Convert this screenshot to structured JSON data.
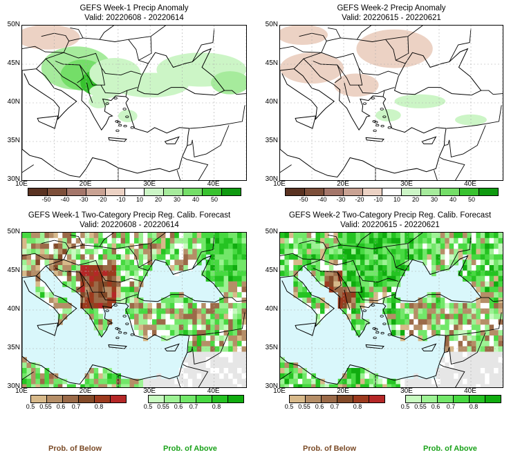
{
  "panels": [
    {
      "title": "GEFS Week-1 Precip Anomaly",
      "valid": "Valid: 20220608 - 20220614"
    },
    {
      "title": "GEFS Week-2 Precip Anomaly",
      "valid": "Valid: 20220615 - 20220621"
    },
    {
      "title": "GEFS Week-1 Two-Category Precip Reg. Calib. Forecast",
      "valid": "Valid: 20220608 - 20220614"
    },
    {
      "title": "GEFS Week-2 Two-Category Precip Reg. Calib. Forecast",
      "valid": "Valid: 20220615 - 20220621"
    }
  ],
  "axes": {
    "lat_labels": [
      "50N",
      "45N",
      "40N",
      "35N",
      "30N"
    ],
    "lon_labels": [
      "10E",
      "20E",
      "30E",
      "40E"
    ]
  },
  "anomaly_colorbar": {
    "ticks": [
      "-50",
      "-40",
      "-30",
      "-20",
      "-10",
      "10",
      "20",
      "30",
      "40",
      "50"
    ],
    "colors": [
      "#5a3322",
      "#7d4f3a",
      "#a4766a",
      "#c9a293",
      "#ecd2c4",
      "#ffffff",
      "#ccf5c6",
      "#a6eb9c",
      "#74de68",
      "#38c22f",
      "#0f9a10"
    ]
  },
  "prob_colorbar": {
    "below_ticks": [
      "0.5",
      "0.55",
      "0.6",
      "0.7",
      "0.8"
    ],
    "below_colors": [
      "#d7b98a",
      "#b58e67",
      "#9b6a48",
      "#834a28",
      "#9c3a1e",
      "#b52727"
    ],
    "above_ticks": [
      "0.5",
      "0.55",
      "0.6",
      "0.7",
      "0.8"
    ],
    "above_colors": [
      "#c8fac0",
      "#9df294",
      "#72e769",
      "#47d941",
      "#25c322",
      "#10ac0f"
    ]
  },
  "footer": {
    "below_label": "Prob. of Below",
    "above_label": "Prob. of Above",
    "below_color": "#7a4a26",
    "above_color": "#1aa21a"
  },
  "map_colors": {
    "sea_prob": "#d9f7fb",
    "land_gray": "#e6e6e6"
  }
}
